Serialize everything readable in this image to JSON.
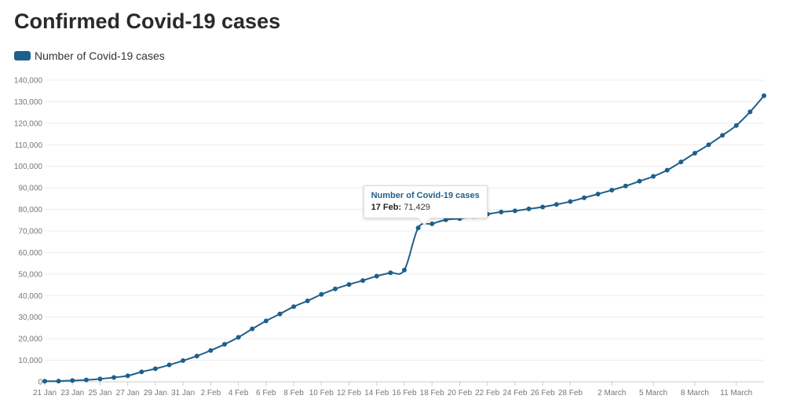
{
  "page": {
    "title": "Confirmed Covid-19 cases"
  },
  "chart_data": {
    "type": "line",
    "title": "Confirmed Covid-19 cases",
    "xlabel": "",
    "ylabel": "",
    "ylim": [
      0,
      140000
    ],
    "yticks": [
      0,
      10000,
      20000,
      30000,
      40000,
      50000,
      60000,
      70000,
      80000,
      90000,
      100000,
      110000,
      120000,
      130000,
      140000
    ],
    "ytick_labels": [
      "0",
      "10,000",
      "20,000",
      "30,000",
      "40,000",
      "50,000",
      "60,000",
      "70,000",
      "80,000",
      "90,000",
      "100,000",
      "110,000",
      "120,000",
      "130,000",
      "140,000"
    ],
    "grid": true,
    "legend": "top-left",
    "color": "#1f5f8b",
    "x_ticks": [
      {
        "index": 0,
        "label": "21 Jan"
      },
      {
        "index": 2,
        "label": "23 Jan"
      },
      {
        "index": 4,
        "label": "25 Jan"
      },
      {
        "index": 6,
        "label": "27 Jan"
      },
      {
        "index": 8,
        "label": "29 Jan"
      },
      {
        "index": 10,
        "label": "31 Jan"
      },
      {
        "index": 12,
        "label": "2 Feb"
      },
      {
        "index": 14,
        "label": "4 Feb"
      },
      {
        "index": 16,
        "label": "6 Feb"
      },
      {
        "index": 18,
        "label": "8 Feb"
      },
      {
        "index": 20,
        "label": "10 Feb"
      },
      {
        "index": 22,
        "label": "12 Feb"
      },
      {
        "index": 24,
        "label": "14 Feb"
      },
      {
        "index": 26,
        "label": "16 Feb"
      },
      {
        "index": 28,
        "label": "18 Feb"
      },
      {
        "index": 30,
        "label": "20 Feb"
      },
      {
        "index": 32,
        "label": "22 Feb"
      },
      {
        "index": 34,
        "label": "24 Feb"
      },
      {
        "index": 36,
        "label": "26 Feb"
      },
      {
        "index": 38,
        "label": "28 Feb"
      },
      {
        "index": 41,
        "label": "2 March"
      },
      {
        "index": 44,
        "label": "5 March"
      },
      {
        "index": 47,
        "label": "8 March"
      },
      {
        "index": 50,
        "label": "11 March"
      }
    ],
    "series": [
      {
        "name": "Number of Covid-19 cases",
        "values": [
          282,
          314,
          579,
          846,
          1320,
          2014,
          2798,
          4593,
          6065,
          7818,
          9826,
          11953,
          14557,
          17391,
          20630,
          24554,
          28276,
          31481,
          34886,
          37558,
          40554,
          43103,
          45171,
          46997,
          49053,
          50580,
          51857,
          71429,
          73332,
          75204,
          75748,
          76769,
          77794,
          78811,
          79331,
          80239,
          81109,
          82294,
          83652,
          85403,
          87137,
          88948,
          90869,
          93091,
          95324,
          98192,
          102050,
          106099,
          109991,
          114381,
          118948,
          125288,
          132758
        ]
      }
    ]
  },
  "tooltip": {
    "series": "Number of Covid-19 cases",
    "date": "17 Feb:",
    "value": "71,429",
    "index": 27
  }
}
